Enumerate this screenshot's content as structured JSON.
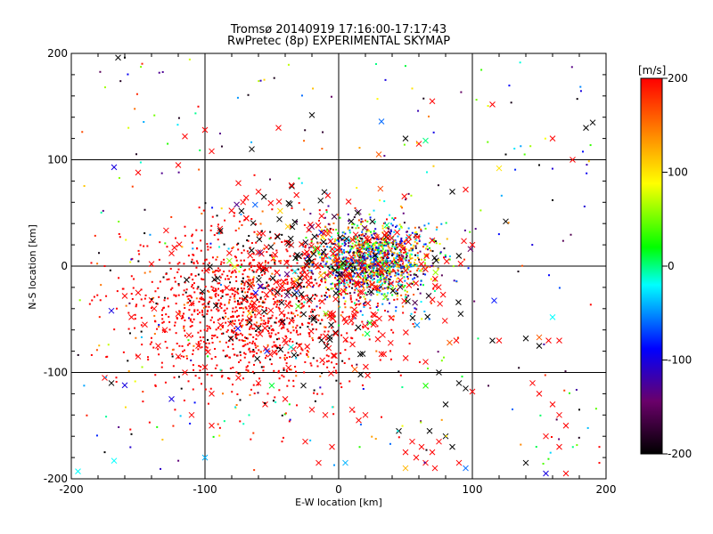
{
  "chart_data": {
    "type": "scatter",
    "title": "Tromsø 20140919 17:16:00-17:17:43",
    "subtitle": "RwPretec (8p) EXPERIMENTAL SKYMAP",
    "xlabel": "E-W location [km]",
    "ylabel": "N-S location [km]",
    "xlim": [
      -200,
      200
    ],
    "ylim": [
      -200,
      200
    ],
    "x_ticks": [
      "-200",
      "-100",
      "0",
      "100",
      "200"
    ],
    "y_ticks": [
      "-200",
      "-100",
      "0",
      "100",
      "200"
    ],
    "grid": true,
    "marker_styles": [
      "dot",
      "x"
    ],
    "color_encoding": "velocity",
    "colorbar": {
      "label": "[m/s]",
      "range": [
        -200,
        200
      ],
      "ticks": [
        "200",
        "100",
        "0",
        "-100",
        "-200"
      ],
      "colors": [
        "#000000",
        "#6a006a",
        "#0000ff",
        "#00ffff",
        "#00ff00",
        "#ffff00",
        "#ff0000"
      ]
    },
    "points": [
      {
        "x": -165,
        "y": 196,
        "v": -200,
        "m": "x"
      },
      {
        "x": -160,
        "y": 196,
        "v": -200,
        "m": "dot"
      },
      {
        "x": -105,
        "y": 150,
        "v": 200,
        "m": "dot"
      },
      {
        "x": -100,
        "y": 128,
        "v": 200,
        "m": "x"
      },
      {
        "x": -115,
        "y": 122,
        "v": 200,
        "m": "x"
      },
      {
        "x": -95,
        "y": 108,
        "v": 200,
        "m": "x"
      },
      {
        "x": -65,
        "y": 110,
        "v": -200,
        "m": "x"
      },
      {
        "x": -45,
        "y": 130,
        "v": 200,
        "m": "x"
      },
      {
        "x": -20,
        "y": 142,
        "v": -200,
        "m": "x"
      },
      {
        "x": -150,
        "y": 88,
        "v": 200,
        "m": "x"
      },
      {
        "x": -168,
        "y": 93,
        "v": -100,
        "m": "x"
      },
      {
        "x": -120,
        "y": 95,
        "v": 200,
        "m": "x"
      },
      {
        "x": -75,
        "y": 78,
        "v": 200,
        "m": "x"
      },
      {
        "x": -60,
        "y": 70,
        "v": 200,
        "m": "x"
      },
      {
        "x": -35,
        "y": 75,
        "v": -200,
        "m": "x"
      },
      {
        "x": 28,
        "y": 190,
        "v": 0,
        "m": "dot"
      },
      {
        "x": 35,
        "y": 175,
        "v": -100,
        "m": "dot"
      },
      {
        "x": 55,
        "y": 167,
        "v": 100,
        "m": "dot"
      },
      {
        "x": 60,
        "y": 115,
        "v": 200,
        "m": "x"
      },
      {
        "x": 65,
        "y": 118,
        "v": 0,
        "m": "x"
      },
      {
        "x": 50,
        "y": 120,
        "v": -200,
        "m": "x"
      },
      {
        "x": 32,
        "y": 136,
        "v": -60,
        "m": "x"
      },
      {
        "x": 30,
        "y": 105,
        "v": 160,
        "m": "x"
      },
      {
        "x": 70,
        "y": 155,
        "v": 200,
        "m": "x"
      },
      {
        "x": 115,
        "y": 152,
        "v": 200,
        "m": "x"
      },
      {
        "x": 160,
        "y": 120,
        "v": 200,
        "m": "x"
      },
      {
        "x": 190,
        "y": 135,
        "v": -200,
        "m": "x"
      },
      {
        "x": 185,
        "y": 130,
        "v": -200,
        "m": "x"
      },
      {
        "x": 175,
        "y": 100,
        "v": 200,
        "m": "x"
      },
      {
        "x": 125,
        "y": 105,
        "v": -200,
        "m": "dot"
      },
      {
        "x": 120,
        "y": 92,
        "v": 100,
        "m": "x"
      },
      {
        "x": 150,
        "y": 95,
        "v": -200,
        "m": "dot"
      },
      {
        "x": 125,
        "y": 42,
        "v": -200,
        "m": "x"
      },
      {
        "x": 160,
        "y": 62,
        "v": -200,
        "m": "dot"
      },
      {
        "x": 95,
        "y": 72,
        "v": 200,
        "m": "x"
      },
      {
        "x": 85,
        "y": 70,
        "v": -200,
        "m": "x"
      },
      {
        "x": 100,
        "y": 20,
        "v": 200,
        "m": "x"
      },
      {
        "x": -185,
        "y": 3,
        "v": 200,
        "m": "dot"
      },
      {
        "x": -175,
        "y": 0,
        "v": 200,
        "m": "dot"
      },
      {
        "x": -140,
        "y": 2,
        "v": 200,
        "m": "x"
      },
      {
        "x": -125,
        "y": 12,
        "v": 200,
        "m": "x"
      },
      {
        "x": -160,
        "y": -28,
        "v": 200,
        "m": "x"
      },
      {
        "x": -150,
        "y": -25,
        "v": 200,
        "m": "x"
      },
      {
        "x": -140,
        "y": -32,
        "v": 200,
        "m": "x"
      },
      {
        "x": -138,
        "y": -40,
        "v": 200,
        "m": "x"
      },
      {
        "x": -155,
        "y": -48,
        "v": 200,
        "m": "x"
      },
      {
        "x": -145,
        "y": -55,
        "v": 200,
        "m": "x"
      },
      {
        "x": -130,
        "y": -60,
        "v": 200,
        "m": "x"
      },
      {
        "x": -120,
        "y": -45,
        "v": 200,
        "m": "x"
      },
      {
        "x": -110,
        "y": -35,
        "v": 200,
        "m": "x"
      },
      {
        "x": -112,
        "y": -65,
        "v": 200,
        "m": "x"
      },
      {
        "x": -170,
        "y": -42,
        "v": -100,
        "m": "x"
      },
      {
        "x": -135,
        "y": -75,
        "v": 200,
        "m": "x"
      },
      {
        "x": -150,
        "y": -85,
        "v": 200,
        "m": "x"
      },
      {
        "x": -120,
        "y": -85,
        "v": 200,
        "m": "x"
      },
      {
        "x": -105,
        "y": -75,
        "v": 200,
        "m": "x"
      },
      {
        "x": -100,
        "y": -95,
        "v": 200,
        "m": "x"
      },
      {
        "x": -115,
        "y": -100,
        "v": 200,
        "m": "x"
      },
      {
        "x": -95,
        "y": -120,
        "v": 200,
        "m": "x"
      },
      {
        "x": -175,
        "y": -105,
        "v": 200,
        "m": "x"
      },
      {
        "x": -170,
        "y": -110,
        "v": -200,
        "m": "x"
      },
      {
        "x": -160,
        "y": -112,
        "v": -100,
        "m": "x"
      },
      {
        "x": -125,
        "y": -125,
        "v": -100,
        "m": "x"
      },
      {
        "x": -110,
        "y": -140,
        "v": 200,
        "m": "x"
      },
      {
        "x": -95,
        "y": -150,
        "v": 200,
        "m": "x"
      },
      {
        "x": -75,
        "y": -105,
        "v": 200,
        "m": "x"
      },
      {
        "x": -60,
        "y": -110,
        "v": 200,
        "m": "x"
      },
      {
        "x": -55,
        "y": -130,
        "v": 200,
        "m": "x"
      },
      {
        "x": -40,
        "y": -125,
        "v": 200,
        "m": "x"
      },
      {
        "x": -20,
        "y": -135,
        "v": 200,
        "m": "x"
      },
      {
        "x": -10,
        "y": -140,
        "v": 200,
        "m": "x"
      },
      {
        "x": 10,
        "y": -135,
        "v": 200,
        "m": "x"
      },
      {
        "x": 15,
        "y": -145,
        "v": 200,
        "m": "x"
      },
      {
        "x": 20,
        "y": -140,
        "v": 200,
        "m": "x"
      },
      {
        "x": -5,
        "y": -170,
        "v": 200,
        "m": "x"
      },
      {
        "x": -15,
        "y": -185,
        "v": 200,
        "m": "x"
      },
      {
        "x": -25,
        "y": -165,
        "v": 200,
        "m": "x"
      },
      {
        "x": 5,
        "y": -185,
        "v": -40,
        "m": "x"
      },
      {
        "x": -100,
        "y": -180,
        "v": -40,
        "m": "x"
      },
      {
        "x": -168,
        "y": -183,
        "v": -20,
        "m": "x"
      },
      {
        "x": -195,
        "y": -193,
        "v": -20,
        "m": "x"
      },
      {
        "x": -175,
        "y": -175,
        "v": -200,
        "m": "dot"
      },
      {
        "x": -155,
        "y": -158,
        "v": -200,
        "m": "dot"
      },
      {
        "x": 45,
        "y": -155,
        "v": -200,
        "m": "x"
      },
      {
        "x": 50,
        "y": -175,
        "v": 200,
        "m": "x"
      },
      {
        "x": 55,
        "y": -165,
        "v": 200,
        "m": "x"
      },
      {
        "x": 58,
        "y": -180,
        "v": 200,
        "m": "x"
      },
      {
        "x": 62,
        "y": -170,
        "v": 200,
        "m": "x"
      },
      {
        "x": 65,
        "y": -185,
        "v": 200,
        "m": "x"
      },
      {
        "x": 70,
        "y": -175,
        "v": 200,
        "m": "x"
      },
      {
        "x": 72,
        "y": -190,
        "v": 200,
        "m": "x"
      },
      {
        "x": 75,
        "y": -165,
        "v": 200,
        "m": "x"
      },
      {
        "x": 68,
        "y": -155,
        "v": -200,
        "m": "x"
      },
      {
        "x": 80,
        "y": -160,
        "v": -200,
        "m": "x"
      },
      {
        "x": 85,
        "y": -170,
        "v": -200,
        "m": "x"
      },
      {
        "x": 90,
        "y": -185,
        "v": 200,
        "m": "x"
      },
      {
        "x": 95,
        "y": -190,
        "v": -60,
        "m": "x"
      },
      {
        "x": 50,
        "y": -190,
        "v": 120,
        "m": "x"
      },
      {
        "x": 80,
        "y": -130,
        "v": -200,
        "m": "x"
      },
      {
        "x": 90,
        "y": -110,
        "v": -200,
        "m": "x"
      },
      {
        "x": 95,
        "y": -115,
        "v": -200,
        "m": "x"
      },
      {
        "x": 100,
        "y": -118,
        "v": 200,
        "m": "x"
      },
      {
        "x": 75,
        "y": -100,
        "v": -200,
        "m": "x"
      },
      {
        "x": 65,
        "y": -90,
        "v": 200,
        "m": "x"
      },
      {
        "x": 88,
        "y": -70,
        "v": 200,
        "m": "x"
      },
      {
        "x": 83,
        "y": -72,
        "v": 160,
        "m": "x"
      },
      {
        "x": 115,
        "y": -70,
        "v": -200,
        "m": "x"
      },
      {
        "x": 120,
        "y": -70,
        "v": 200,
        "m": "x"
      },
      {
        "x": 140,
        "y": -68,
        "v": -200,
        "m": "x"
      },
      {
        "x": 150,
        "y": -67,
        "v": 160,
        "m": "x"
      },
      {
        "x": 157,
        "y": -70,
        "v": 200,
        "m": "x"
      },
      {
        "x": 150,
        "y": -75,
        "v": -200,
        "m": "x"
      },
      {
        "x": 165,
        "y": -70,
        "v": 200,
        "m": "x"
      },
      {
        "x": 160,
        "y": -48,
        "v": -20,
        "m": "x"
      },
      {
        "x": 145,
        "y": -110,
        "v": 200,
        "m": "x"
      },
      {
        "x": 150,
        "y": -120,
        "v": 200,
        "m": "x"
      },
      {
        "x": 160,
        "y": -130,
        "v": 200,
        "m": "x"
      },
      {
        "x": 165,
        "y": -140,
        "v": 200,
        "m": "x"
      },
      {
        "x": 170,
        "y": -150,
        "v": 200,
        "m": "x"
      },
      {
        "x": 180,
        "y": -135,
        "v": -200,
        "m": "dot"
      },
      {
        "x": 155,
        "y": -160,
        "v": 200,
        "m": "x"
      },
      {
        "x": 165,
        "y": -170,
        "v": 200,
        "m": "x"
      },
      {
        "x": 140,
        "y": -185,
        "v": -200,
        "m": "x"
      },
      {
        "x": 155,
        "y": -195,
        "v": -100,
        "m": "x"
      },
      {
        "x": 170,
        "y": -195,
        "v": 200,
        "m": "x"
      },
      {
        "x": 195,
        "y": -170,
        "v": 200,
        "m": "dot"
      },
      {
        "x": 195,
        "y": -185,
        "v": 200,
        "m": "dot"
      }
    ]
  }
}
